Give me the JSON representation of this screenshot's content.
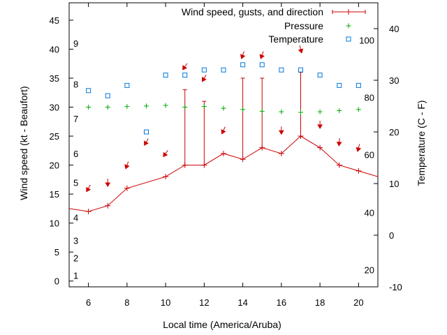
{
  "chart_data": {
    "type": "line",
    "xlabel": "Local time (America/Aruba)",
    "ylabel_left": "Wind speed (kt - Beaufort)",
    "ylabel_right": "Temperature (C - F)",
    "xlim": [
      5,
      21
    ],
    "ylim_left": [
      -1,
      48
    ],
    "ylim_right": [
      -10,
      45
    ],
    "x_ticks": [
      6,
      8,
      10,
      12,
      14,
      16,
      18,
      20
    ],
    "y_left_ticks": [
      0,
      5,
      10,
      15,
      20,
      25,
      30,
      35,
      40,
      45
    ],
    "y_right_ticks": [
      -10,
      0,
      10,
      20,
      30,
      40
    ],
    "beaufort_labels": [
      {
        "label": "1",
        "kt": 1
      },
      {
        "label": "2",
        "kt": 4
      },
      {
        "label": "3",
        "kt": 7
      },
      {
        "label": "4",
        "kt": 11
      },
      {
        "label": "5",
        "kt": 17
      },
      {
        "label": "6",
        "kt": 22
      },
      {
        "label": "7",
        "kt": 28
      },
      {
        "label": "8",
        "kt": 34
      },
      {
        "label": "9",
        "kt": 41
      }
    ],
    "fahrenheit_labels": [
      {
        "label": "20",
        "c": -6.7
      },
      {
        "label": "40",
        "c": 4.4
      },
      {
        "label": "60",
        "c": 15.6
      },
      {
        "label": "80",
        "c": 26.7
      },
      {
        "label": "100",
        "c": 37.8
      }
    ],
    "series": [
      {
        "name": "Wind speed, gusts, and direction",
        "color": "#cc0000",
        "x": [
          5,
          6,
          7,
          8,
          10,
          11,
          12,
          13,
          14,
          15,
          16,
          17,
          18,
          19,
          20,
          21
        ],
        "values": [
          12.5,
          12,
          13,
          16,
          18,
          20,
          20,
          22,
          21,
          23,
          22,
          25,
          23,
          20,
          19,
          18
        ]
      },
      {
        "name": "Pressure",
        "color": "#00aa00",
        "x": [
          6,
          7,
          8,
          9,
          10,
          11,
          12,
          13,
          14,
          15,
          16,
          17,
          18,
          19,
          20
        ],
        "values": [
          30,
          30,
          30.1,
          30.2,
          30.3,
          30,
          30.1,
          29.8,
          29.6,
          29.3,
          29.2,
          29.1,
          29.2,
          29.4,
          29.6
        ]
      },
      {
        "name": "Temperature",
        "color": "#0077dd",
        "x": [
          6,
          7,
          8,
          9,
          10,
          11,
          12,
          13,
          14,
          15,
          16,
          17,
          18,
          19,
          20
        ],
        "values": [
          28,
          27,
          29,
          20,
          31,
          31,
          32,
          32,
          33,
          33,
          32,
          32,
          31,
          29,
          29
        ]
      }
    ],
    "gusts": [
      {
        "x": 11,
        "from": 20,
        "to": 33
      },
      {
        "x": 12,
        "from": 20,
        "to": 31
      },
      {
        "x": 14,
        "from": 21,
        "to": 35
      },
      {
        "x": 15,
        "from": 23,
        "to": 35
      },
      {
        "x": 17,
        "from": 25,
        "to": 36
      }
    ],
    "wind_direction_arrows": [
      {
        "x": 6,
        "y": 16,
        "toward_deg": 210
      },
      {
        "x": 7,
        "y": 17,
        "toward_deg": 180
      },
      {
        "x": 8,
        "y": 20,
        "toward_deg": 200
      },
      {
        "x": 9,
        "y": 24,
        "toward_deg": 210
      },
      {
        "x": 10,
        "y": 22,
        "toward_deg": 215
      },
      {
        "x": 11,
        "y": 37,
        "toward_deg": 215
      },
      {
        "x": 12,
        "y": 35,
        "toward_deg": 210
      },
      {
        "x": 13,
        "y": 26,
        "toward_deg": 205
      },
      {
        "x": 14,
        "y": 39,
        "toward_deg": 200
      },
      {
        "x": 15,
        "y": 39,
        "toward_deg": 200
      },
      {
        "x": 16,
        "y": 26,
        "toward_deg": 180
      },
      {
        "x": 17,
        "y": 40,
        "toward_deg": 165
      },
      {
        "x": 18,
        "y": 27,
        "toward_deg": 180
      },
      {
        "x": 19,
        "y": 24,
        "toward_deg": 185
      },
      {
        "x": 20,
        "y": 23,
        "toward_deg": 195
      }
    ]
  }
}
